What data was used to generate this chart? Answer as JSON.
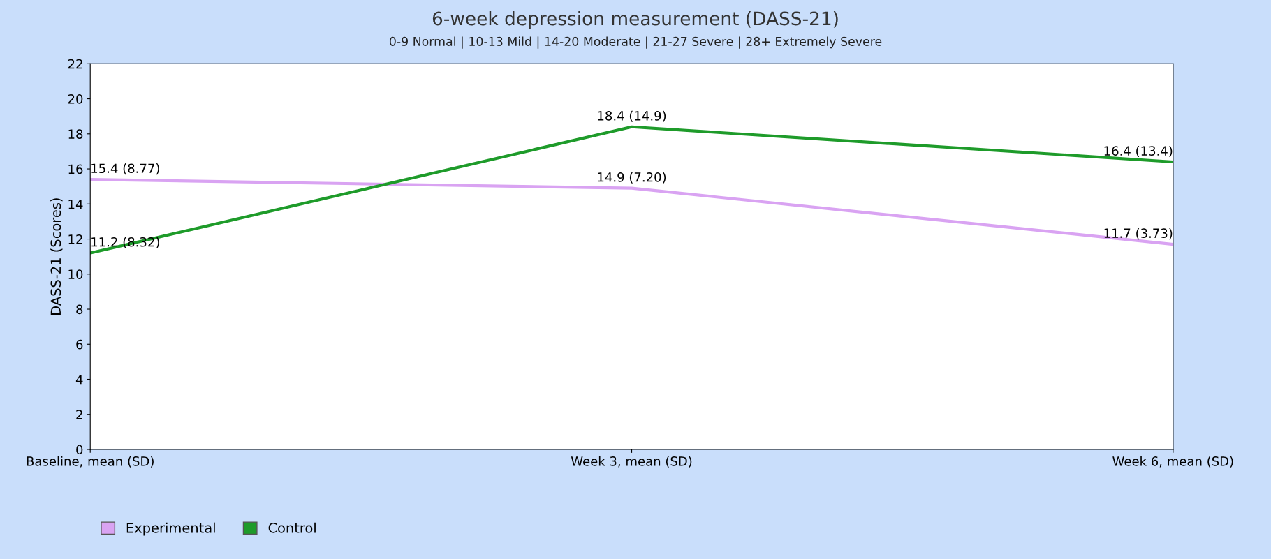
{
  "chart_data": {
    "type": "line",
    "title": "6-week depression measurement (DASS-21)",
    "subtitle": "0-9 Normal | 10-13 Mild | 14-20 Moderate | 21-27 Severe | 28+ Extremely Severe",
    "ylabel": "DASS-21 (Scores)",
    "categories": [
      "Baseline, mean (SD)",
      "Week 3, mean (SD)",
      "Week 6, mean (SD)"
    ],
    "series": [
      {
        "name": "Experimental",
        "color": "#d9a3f2",
        "values": [
          15.4,
          14.9,
          11.7
        ],
        "value_labels": [
          "15.4 (8.77)",
          "14.9 (7.20)",
          "11.7 (3.73)"
        ]
      },
      {
        "name": "Control",
        "color": "#1e9b2a",
        "values": [
          11.2,
          18.4,
          16.4
        ],
        "value_labels": [
          "11.2 (8.32)",
          "18.4 (14.9)",
          "16.4 (13.4)"
        ]
      }
    ],
    "ylim": [
      0,
      22
    ],
    "yticks": [
      0,
      2,
      4,
      6,
      8,
      10,
      12,
      14,
      16,
      18,
      20,
      22
    ],
    "grid": false,
    "legend": "bottom left",
    "marker": "none",
    "line_style": "solid"
  }
}
